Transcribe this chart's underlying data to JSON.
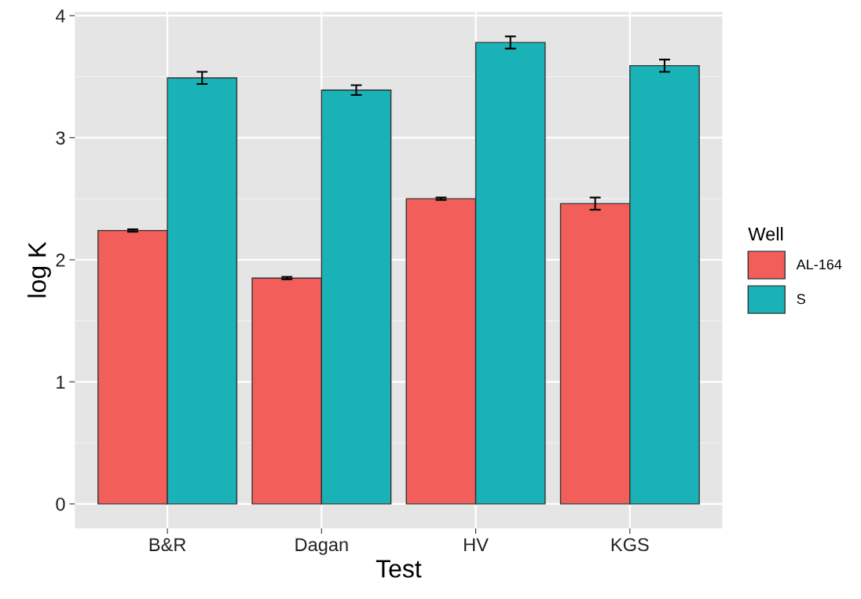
{
  "chart_data": {
    "type": "bar",
    "xlabel": "Test",
    "ylabel": "log K",
    "legend_title": "Well",
    "legend": "right",
    "grid": true,
    "categories": [
      "B&R",
      "Dagan",
      "HV",
      "KGS"
    ],
    "series": [
      {
        "name": "AL-164",
        "color": "#f25e5a",
        "values": [
          2.24,
          1.85,
          2.5,
          2.46
        ],
        "errors": [
          0.01,
          0.01,
          0.01,
          0.05
        ]
      },
      {
        "name": "S",
        "color": "#19b2b7",
        "values": [
          3.49,
          3.39,
          3.78,
          3.59
        ],
        "errors": [
          0.05,
          0.04,
          0.05,
          0.05
        ]
      }
    ],
    "ylim": [
      -0.2,
      4.03
    ],
    "yticks": [
      0,
      1,
      2,
      3,
      4
    ]
  }
}
